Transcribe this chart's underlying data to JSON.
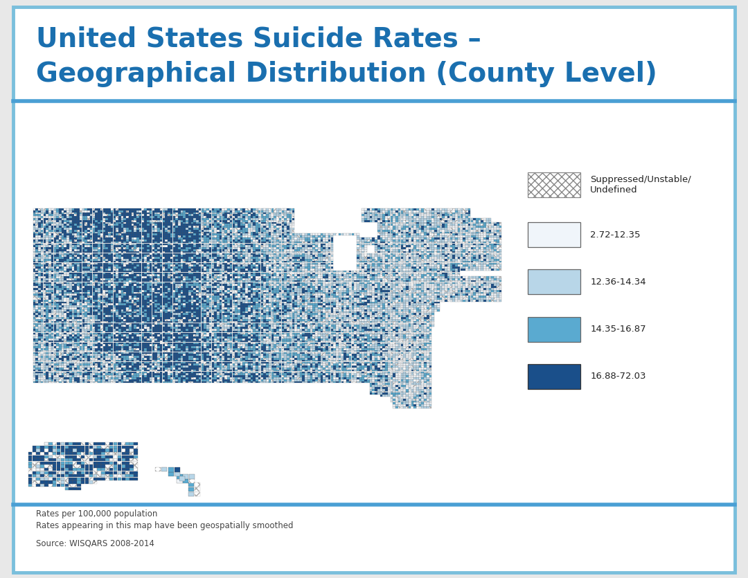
{
  "title_line1": "United States Suicide Rates –",
  "title_line2": "Geographical Distribution (County Level)",
  "title_color": "#1a6faf",
  "title_fontsize": 28,
  "bg_color": "#ffffff",
  "outer_border_color": "#7abfdc",
  "divider_color": "#4a9fd4",
  "note_text1": "Rates per 100,000 population",
  "note_text2": "Rates appearing in this map have been geospatially smoothed",
  "source_text": "Source: WISQARS 2008-2014",
  "map_colors": [
    "#f0f5fa",
    "#b8d6e8",
    "#5aaad0",
    "#1a4f8a"
  ],
  "suppressed_color": "#ffffff",
  "county_edge_color": "#555555",
  "county_edge_width": 0.15,
  "state_edge_color": "#222222",
  "state_edge_width": 0.7
}
